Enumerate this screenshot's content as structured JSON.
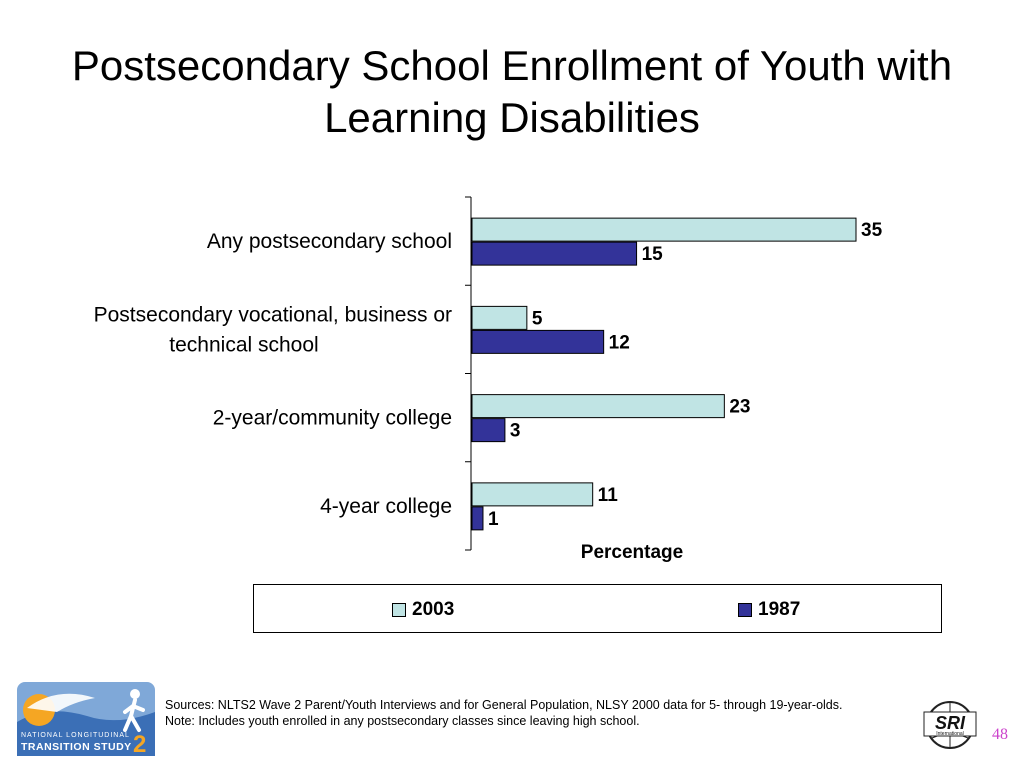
{
  "slide": {
    "title_line1": "Postsecondary School Enrollment of Youth with",
    "title_line2": "Learning Disabilities",
    "page_number": "48"
  },
  "chart_data": {
    "type": "bar",
    "orientation": "horizontal",
    "title": "",
    "xlabel": "Percentage",
    "ylabel": "",
    "xlim": [
      0,
      35
    ],
    "grid": false,
    "legend_position": "bottom",
    "categories": [
      [
        "Any postsecondary school"
      ],
      [
        "Postsecondary vocational, business or",
        "technical school"
      ],
      [
        "2-year/community college"
      ],
      [
        "4-year college"
      ]
    ],
    "series": [
      {
        "name": "2003",
        "values": [
          35,
          5,
          23,
          11
        ],
        "color": "#c0e4e4"
      },
      {
        "name": "1987",
        "values": [
          15,
          12,
          3,
          1
        ],
        "color": "#333399"
      }
    ]
  },
  "footer": {
    "sources": "Sources: NLTS2 Wave 2 Parent/Youth Interviews and for General Population, NLSY 2000 data for 5- through 19-year-olds.",
    "note": "Note: Includes youth enrolled in any postsecondary classes since leaving high school.",
    "logo_left": {
      "line1": "NATIONAL LONGITUDINAL",
      "line2": "TRANSITION STUDY",
      "number": "2"
    },
    "logo_right": {
      "text": "SRI",
      "subtext": "International"
    }
  }
}
